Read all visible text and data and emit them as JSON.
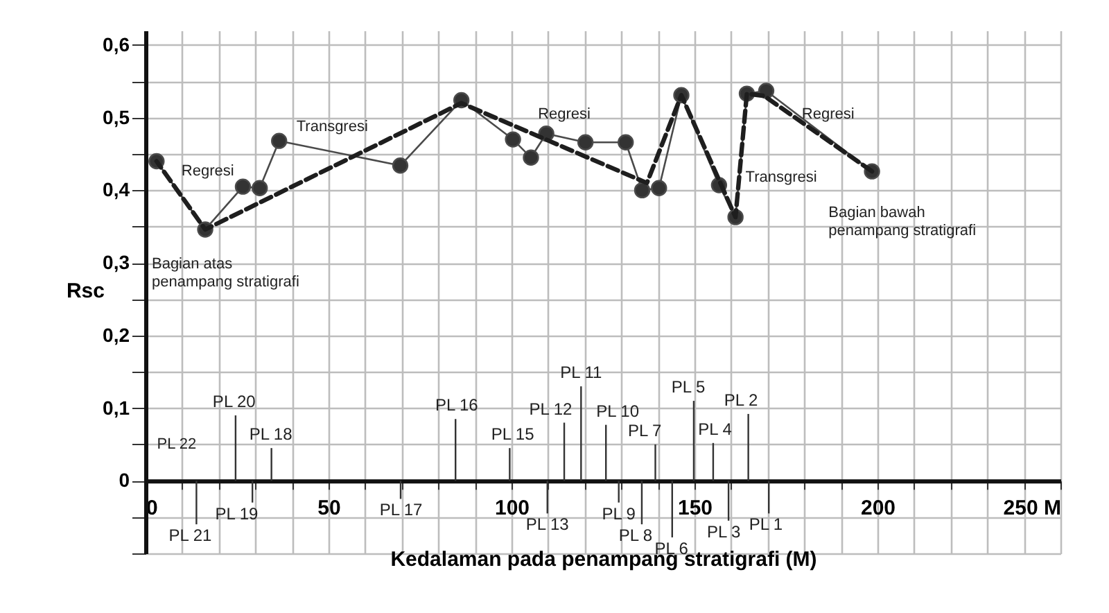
{
  "chart_data": {
    "type": "line",
    "xlabel": "Kedalaman pada penampang stratigrafi (M)",
    "ylabel": "Rsc",
    "xlim": [
      0,
      250
    ],
    "ylim": [
      -0.1,
      0.62
    ],
    "xticks": [
      0,
      {
        "value": 10,
        "label": null
      },
      {
        "value": 20,
        "label": null
      },
      {
        "value": 30,
        "label": null
      },
      {
        "value": 40,
        "label": null
      },
      50,
      {
        "value": 60,
        "label": null
      },
      {
        "value": 70,
        "label": null
      },
      {
        "value": 80,
        "label": null
      },
      {
        "value": 90,
        "label": null
      },
      100,
      {
        "value": 110,
        "label": null
      },
      {
        "value": 120,
        "label": null
      },
      {
        "value": 130,
        "label": null
      },
      {
        "value": 140,
        "label": null
      },
      150,
      {
        "value": 160,
        "label": null
      },
      {
        "value": 170,
        "label": null
      },
      {
        "value": 180,
        "label": null
      },
      {
        "value": 190,
        "label": null
      },
      200,
      {
        "value": 210,
        "label": null
      },
      {
        "value": 220,
        "label": null
      },
      {
        "value": 230,
        "label": null
      },
      {
        "value": 240,
        "label": null
      },
      {
        "value": 250,
        "label": "250 M"
      }
    ],
    "yticks": [
      {
        "value": -0.1,
        "label": null
      },
      {
        "value": -0.05,
        "label": null
      },
      0,
      {
        "value": 0.05,
        "label": null
      },
      {
        "value": 0.1,
        "label": "0,1"
      },
      {
        "value": 0.15,
        "label": null
      },
      {
        "value": 0.2,
        "label": "0,2"
      },
      {
        "value": 0.25,
        "label": null
      },
      {
        "value": 0.3,
        "label": "0,3"
      },
      {
        "value": 0.35,
        "label": null
      },
      {
        "value": 0.4,
        "label": "0,4"
      },
      {
        "value": 0.45,
        "label": null
      },
      {
        "value": 0.5,
        "label": "0,5"
      },
      {
        "value": 0.55,
        "label": null
      },
      {
        "value": 0.6,
        "label": "0,6"
      }
    ],
    "grid": true,
    "marker": "circle",
    "series": [
      {
        "color": "#4a4a4a",
        "line_style": "solid",
        "x": [
          3,
          16.3,
          26.6,
          31.2,
          36.5,
          69.6,
          86.3,
          100.4,
          105.3,
          109.5,
          120.2,
          131.2,
          135.7,
          140.3,
          146.4,
          156.7,
          161.2,
          164.3,
          169.6,
          198.5
        ],
        "values": [
          0.44,
          0.346,
          0.405,
          0.403,
          0.468,
          0.434,
          0.524,
          0.47,
          0.445,
          0.478,
          0.466,
          0.466,
          0.4,
          0.403,
          0.531,
          0.407,
          0.363,
          0.533,
          0.537,
          0.426
        ]
      },
      {
        "type": "line",
        "color": "#1e1e1e",
        "line_style": "dashed",
        "marker": "none",
        "x": [
          198.5,
          169,
          164.3,
          161.2,
          146.4,
          137,
          86.3,
          16.3,
          3
        ],
        "values": [
          0.426,
          0.53,
          0.533,
          0.363,
          0.531,
          0.41,
          0.52,
          0.346,
          0.44
        ]
      }
    ],
    "annotations": [
      "Regresi",
      "Transgresi",
      "Regresi",
      "Regresi",
      "Transgresi",
      "Bagian atas\npenampang stratigrafi",
      "Bagian bawah\npenampang stratigrafi",
      "PL 22",
      "PL 21",
      "PL 20",
      "PL 19",
      "PL 18",
      "PL 17",
      "PL 16",
      "PL 15",
      "PL 13",
      "PL 12",
      "PL 11",
      "PL 10",
      "PL 9",
      "PL 8",
      "PL 7",
      "PL 6",
      "PL 5",
      "PL 4",
      "PL 3",
      "PL 2",
      "PL 1"
    ]
  }
}
